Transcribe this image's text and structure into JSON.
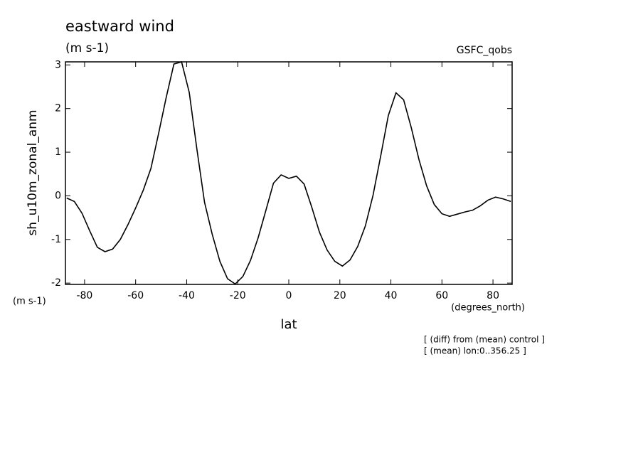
{
  "chart_data": {
    "type": "line",
    "title": "eastward wind",
    "units": "(m s-1)",
    "source": "GSFC_qobs",
    "y_label": "sh_u10m_zonal_anm",
    "y_units": "(m s-1)",
    "x_units": "(degrees_north)",
    "x_label": "lat",
    "notes": [
      "[ (diff) from (mean) control ]",
      "[ (mean) lon:0..356.25 ]"
    ],
    "x": [
      -87,
      -84,
      -81,
      -78,
      -75,
      -72,
      -69,
      -66,
      -63,
      -60,
      -57,
      -54,
      -51,
      -48,
      -45,
      -42,
      -39,
      -36,
      -33,
      -30,
      -27,
      -24,
      -21,
      -18,
      -15,
      -12,
      -9,
      -6,
      -3,
      0,
      3,
      6,
      9,
      12,
      15,
      18,
      21,
      24,
      27,
      30,
      33,
      36,
      39,
      42,
      45,
      48,
      51,
      54,
      57,
      60,
      63,
      66,
      69,
      72,
      75,
      78,
      81,
      84,
      87
    ],
    "values": [
      -0.05,
      -0.13,
      -0.4,
      -0.8,
      -1.18,
      -1.28,
      -1.22,
      -1.0,
      -0.66,
      -0.28,
      0.13,
      0.63,
      1.43,
      2.26,
      3.02,
      3.07,
      2.37,
      1.07,
      -0.15,
      -0.88,
      -1.5,
      -1.9,
      -2.02,
      -1.85,
      -1.48,
      -0.96,
      -0.34,
      0.29,
      0.48,
      0.4,
      0.45,
      0.27,
      -0.26,
      -0.83,
      -1.24,
      -1.5,
      -1.61,
      -1.47,
      -1.16,
      -0.69,
      0.01,
      0.91,
      1.84,
      2.36,
      2.2,
      1.56,
      0.83,
      0.23,
      -0.2,
      -0.41,
      -0.47,
      -0.42,
      -0.37,
      -0.33,
      -0.23,
      -0.1,
      -0.03,
      -0.07,
      -0.13
    ],
    "color": "#000000",
    "xlim": [
      -87.5,
      87.5
    ],
    "ylim": [
      -2.03,
      3.07
    ],
    "xticks": [
      -80,
      -60,
      -40,
      -20,
      0,
      20,
      40,
      60,
      80
    ],
    "yticks": [
      -2,
      -1,
      0,
      1,
      2,
      3
    ]
  }
}
